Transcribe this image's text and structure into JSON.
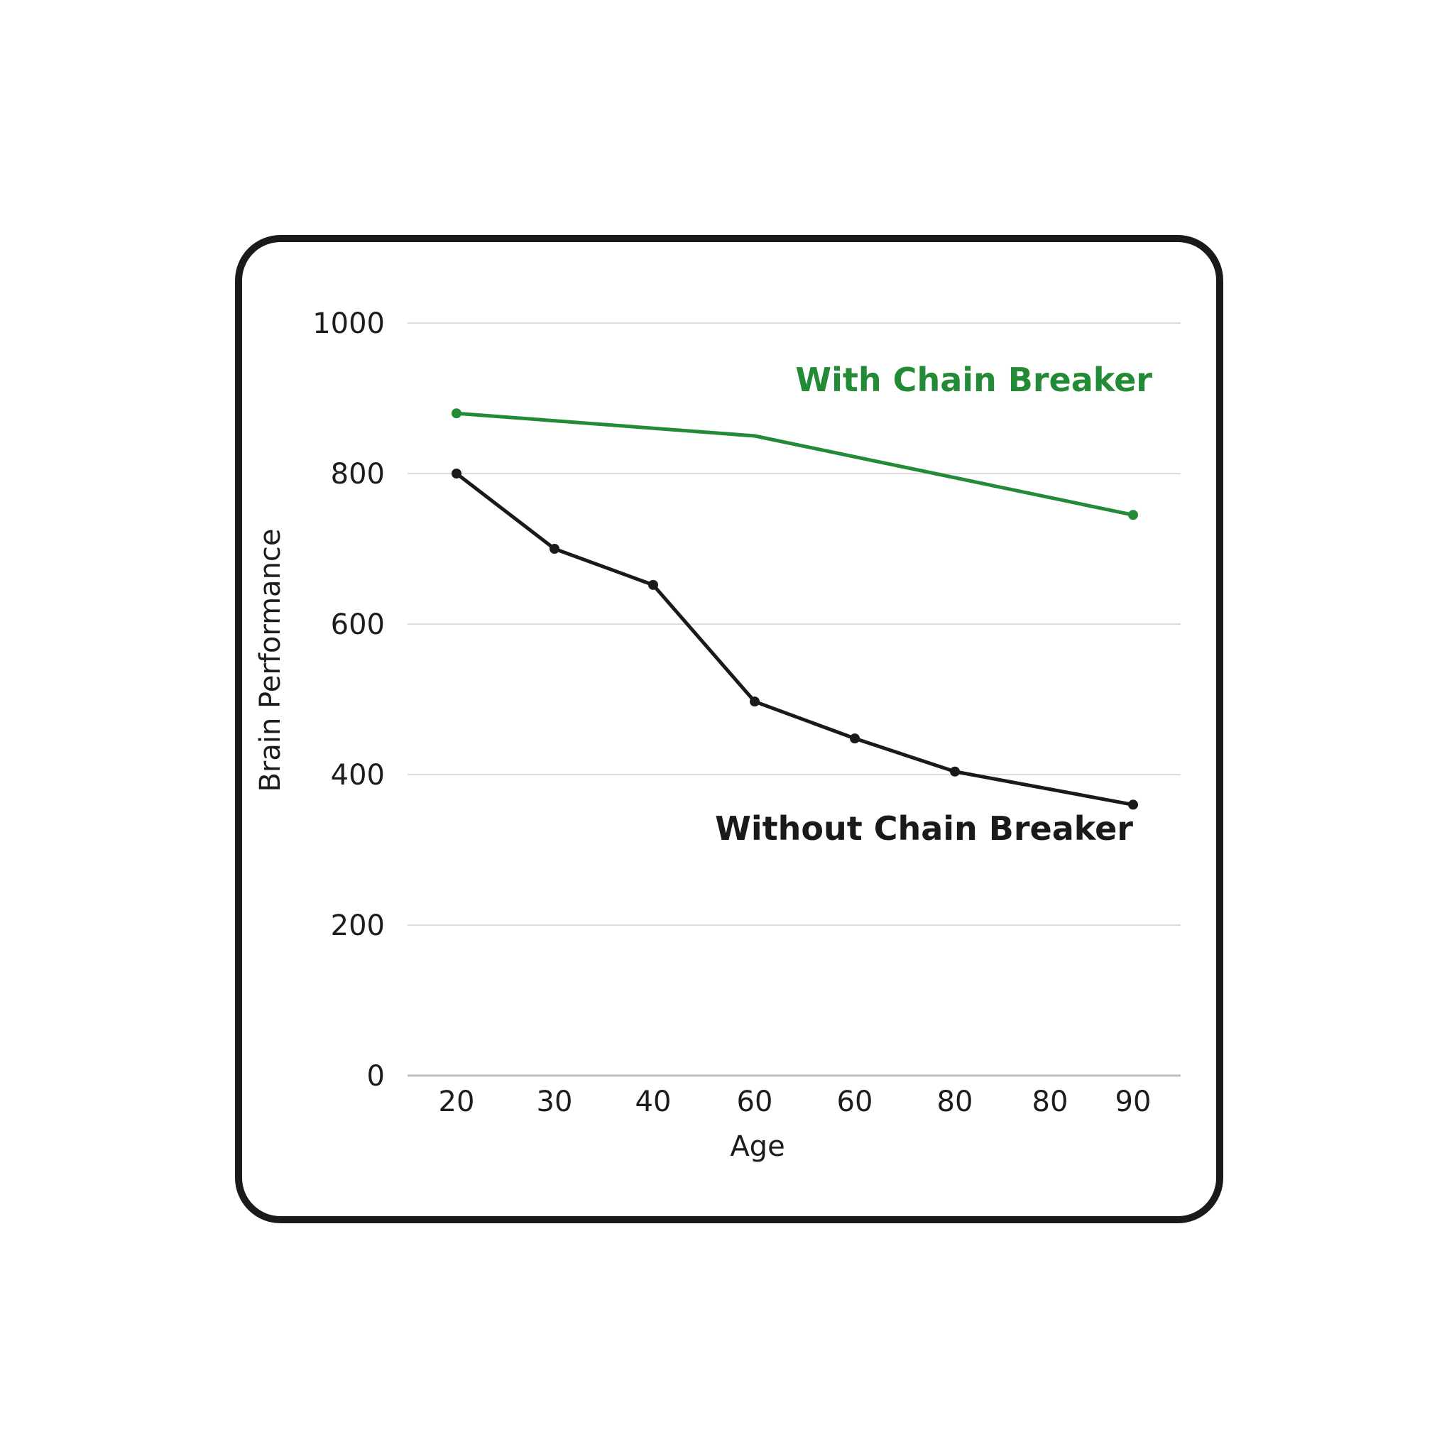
{
  "chart_data": {
    "type": "line",
    "categories": [
      "20",
      "30",
      "40",
      "60",
      "60",
      "80",
      "80",
      "90"
    ],
    "xlabel": "Age",
    "ylabel": "Brain Performance",
    "ylim": [
      0,
      1000
    ],
    "yticks": [
      0,
      200,
      400,
      600,
      800,
      1000
    ],
    "grid": true,
    "series": [
      {
        "name": "With Chain Breaker",
        "color": "#238a35",
        "points": [
          {
            "category_index": 0,
            "value": 880
          },
          {
            "category_index": 3,
            "value": 850
          },
          {
            "category_index": 7,
            "value": 745
          }
        ]
      },
      {
        "name": "Without Chain Breaker",
        "color": "#1a1a1a",
        "points": [
          {
            "category_index": 0,
            "value": 800
          },
          {
            "category_index": 1,
            "value": 700
          },
          {
            "category_index": 2,
            "value": 652
          },
          {
            "category_index": 3,
            "value": 497
          },
          {
            "category_index": 4,
            "value": 448
          },
          {
            "category_index": 5,
            "value": 404
          },
          {
            "category_index": 7,
            "value": 360
          }
        ]
      }
    ]
  }
}
